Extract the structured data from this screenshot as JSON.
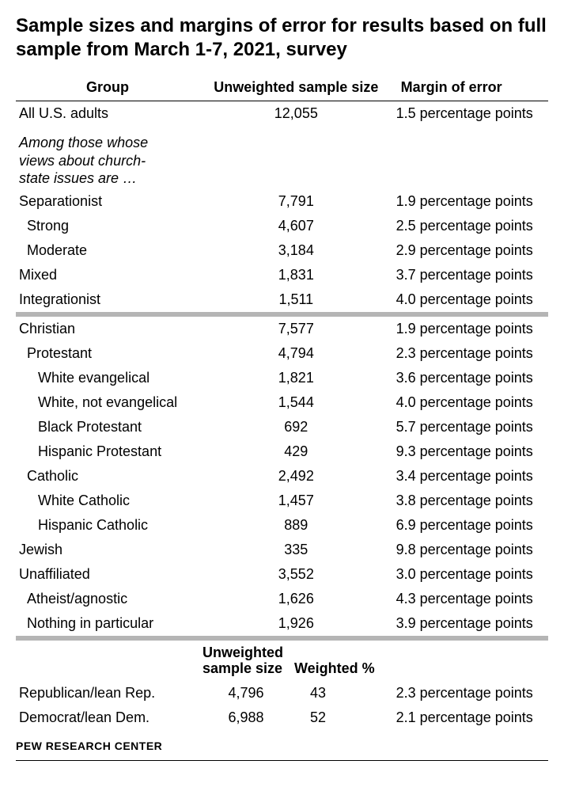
{
  "title": "Sample sizes and margins of error for results based on full sample from March 1-7, 2021, survey",
  "headers": {
    "group": "Group",
    "sample": "Unweighted sample size",
    "moe": "Margin of error"
  },
  "row_all": {
    "label": "All U.S. adults",
    "sample": "12,055",
    "moe": "1.5 percentage points"
  },
  "subhead": "Among those whose views about church-state issues are …",
  "section1": [
    {
      "label": "Separationist",
      "sample": "7,791",
      "moe": "1.9 percentage points",
      "indent": 0
    },
    {
      "label": "Strong",
      "sample": "4,607",
      "moe": "2.5 percentage points",
      "indent": 1
    },
    {
      "label": "Moderate",
      "sample": "3,184",
      "moe": "2.9 percentage points",
      "indent": 1
    },
    {
      "label": "Mixed",
      "sample": "1,831",
      "moe": "3.7 percentage points",
      "indent": 0
    },
    {
      "label": "Integrationist",
      "sample": "1,511",
      "moe": "4.0 percentage points",
      "indent": 0
    }
  ],
  "section2": [
    {
      "label": "Christian",
      "sample": "7,577",
      "moe": "1.9 percentage points",
      "indent": 0
    },
    {
      "label": "Protestant",
      "sample": "4,794",
      "moe": "2.3 percentage points",
      "indent": 1
    },
    {
      "label": "White evangelical",
      "sample": "1,821",
      "moe": "3.6 percentage points",
      "indent": 2
    },
    {
      "label": "White, not evangelical",
      "sample": "1,544",
      "moe": "4.0 percentage points",
      "indent": 2
    },
    {
      "label": "Black Protestant",
      "sample": "692",
      "moe": "5.7 percentage points",
      "indent": 2
    },
    {
      "label": "Hispanic Protestant",
      "sample": "429",
      "moe": "9.3 percentage points",
      "indent": 2
    },
    {
      "label": "Catholic",
      "sample": "2,492",
      "moe": "3.4 percentage points",
      "indent": 1
    },
    {
      "label": "White Catholic",
      "sample": "1,457",
      "moe": "3.8 percentage points",
      "indent": 2
    },
    {
      "label": "Hispanic Catholic",
      "sample": "889",
      "moe": "6.9 percentage points",
      "indent": 2
    },
    {
      "label": "Jewish",
      "sample": "335",
      "moe": "9.8 percentage points",
      "indent": 0
    },
    {
      "label": "Unaffiliated",
      "sample": "3,552",
      "moe": "3.0 percentage points",
      "indent": 0
    },
    {
      "label": "Atheist/agnostic",
      "sample": "1,626",
      "moe": "4.3 percentage points",
      "indent": 1
    },
    {
      "label": "Nothing in particular",
      "sample": "1,926",
      "moe": "3.9 percentage points",
      "indent": 1
    }
  ],
  "mid_headers": {
    "sample": "Unweighted sample size",
    "weighted": "Weighted %"
  },
  "section3": [
    {
      "label": "Republican/lean Rep.",
      "sample": "4,796",
      "weighted": "43",
      "moe": "2.3 percentage points"
    },
    {
      "label": "Democrat/lean Dem.",
      "sample": "6,988",
      "weighted": "52",
      "moe": "2.1 percentage points"
    }
  ],
  "footer": "PEW RESEARCH CENTER",
  "colors": {
    "text": "#000000",
    "bg": "#ffffff",
    "sep": "#b5b5b5"
  }
}
